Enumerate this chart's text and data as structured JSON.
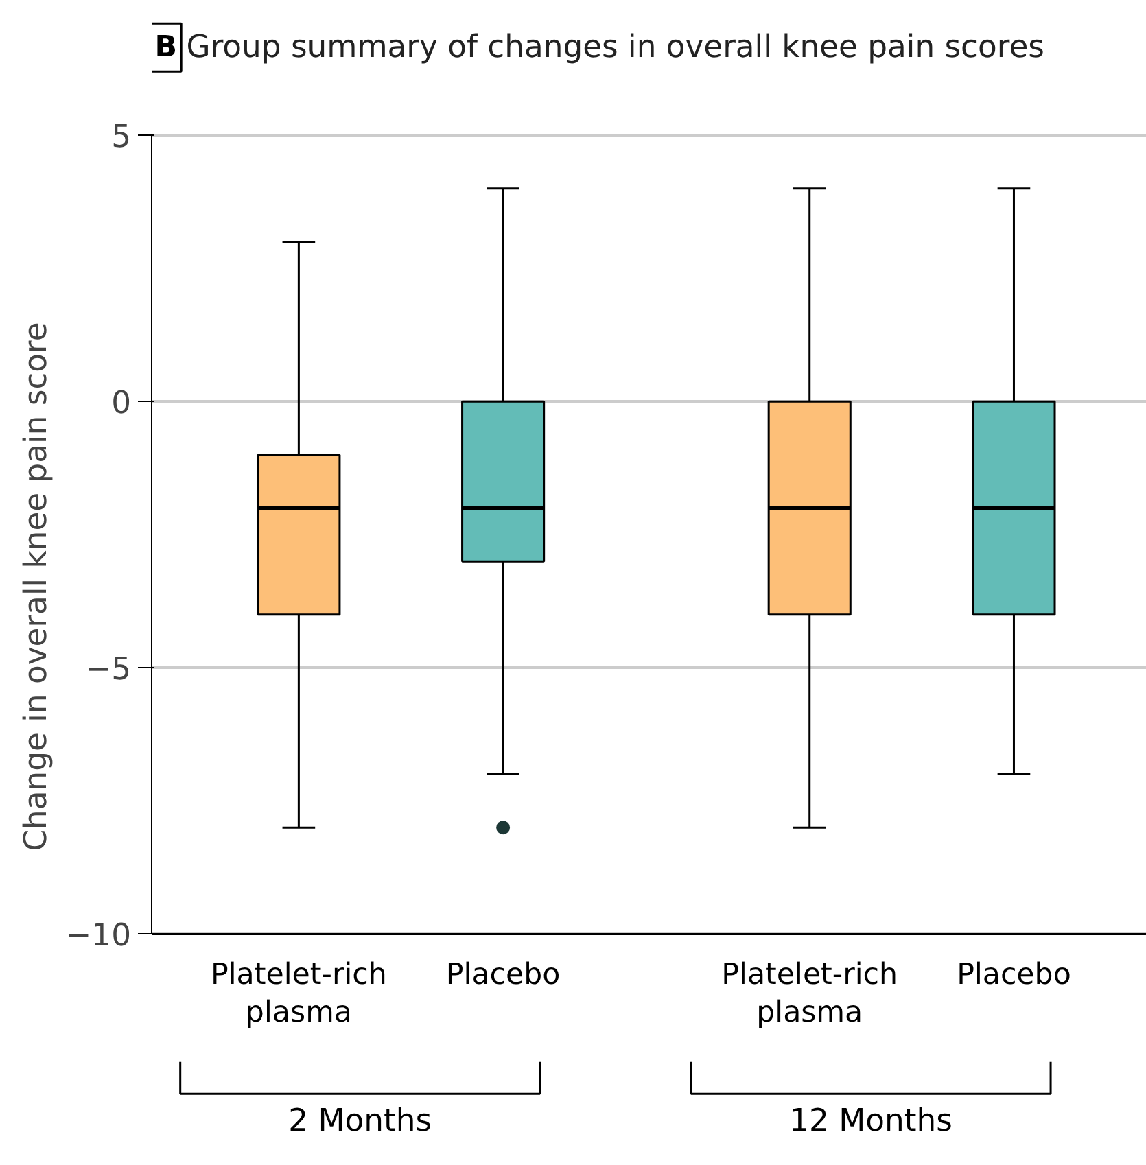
{
  "chart_data": {
    "type": "box",
    "title": "Group summary of changes in overall knee pain scores",
    "ylabel": "Change in overall knee pain score",
    "categories": [
      "Platelet-rich plasma",
      "Placebo",
      "Platelet-rich plasma",
      "Placebo"
    ],
    "colors": [
      "#fdbf78",
      "#63bcb7",
      "#fdbf78",
      "#63bcb7"
    ],
    "boxes": [
      {
        "low": -8,
        "q1": -4,
        "median": -2,
        "q3": -1,
        "high": 3
      },
      {
        "low": -7,
        "q1": -3,
        "median": -2,
        "q3": 0,
        "high": 4,
        "outliers": [
          -8
        ]
      },
      {
        "low": -8,
        "q1": -4,
        "median": -2,
        "q3": 0,
        "high": 4
      },
      {
        "low": -7,
        "q1": -4,
        "median": -2,
        "q3": 0,
        "high": 4
      }
    ],
    "ylim": [
      -10,
      5
    ],
    "yticks": [
      -10,
      -5,
      0,
      5
    ],
    "grid": "y",
    "annotations": [
      "B",
      "2 Months",
      "12 Months"
    ]
  }
}
